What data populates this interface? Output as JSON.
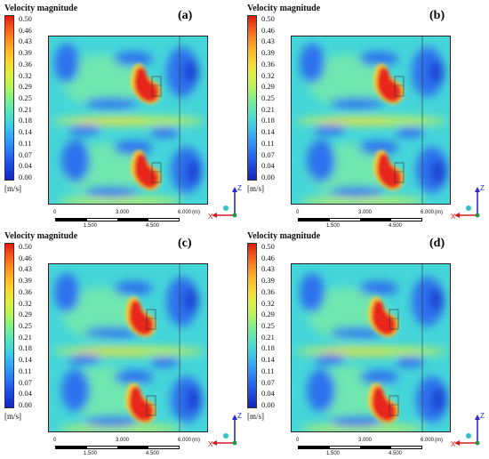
{
  "figure": {
    "colorbar": {
      "title": "Velocity magnitude",
      "ticks": [
        "0.50",
        "0.46",
        "0.43",
        "0.39",
        "0.36",
        "0.32",
        "0.29",
        "0.25",
        "0.21",
        "0.18",
        "0.14",
        "0.11",
        "0.07",
        "0.04",
        "0.00"
      ],
      "unit": "[m/s]",
      "colors": [
        "#e01a10",
        "#f4571a",
        "#fb8c1f",
        "#fdb72a",
        "#f6d934",
        "#dff044",
        "#bcf25a",
        "#86ef86",
        "#5de6b4",
        "#45d6d9",
        "#37b4ef",
        "#2f8ef6",
        "#2865ee",
        "#1d42da",
        "#1426bd"
      ]
    },
    "scale_bar": {
      "top_labels": [
        "0",
        "3.000",
        "6.000"
      ],
      "bottom_labels": [
        "1.500",
        "4.500"
      ],
      "unit": "(m)"
    },
    "axes_triad": {
      "z_label": "Z",
      "x_label": "X"
    },
    "panels": [
      {
        "label": "(a)"
      },
      {
        "label": "(b)"
      },
      {
        "label": "(c)"
      },
      {
        "label": "(d)"
      }
    ]
  }
}
